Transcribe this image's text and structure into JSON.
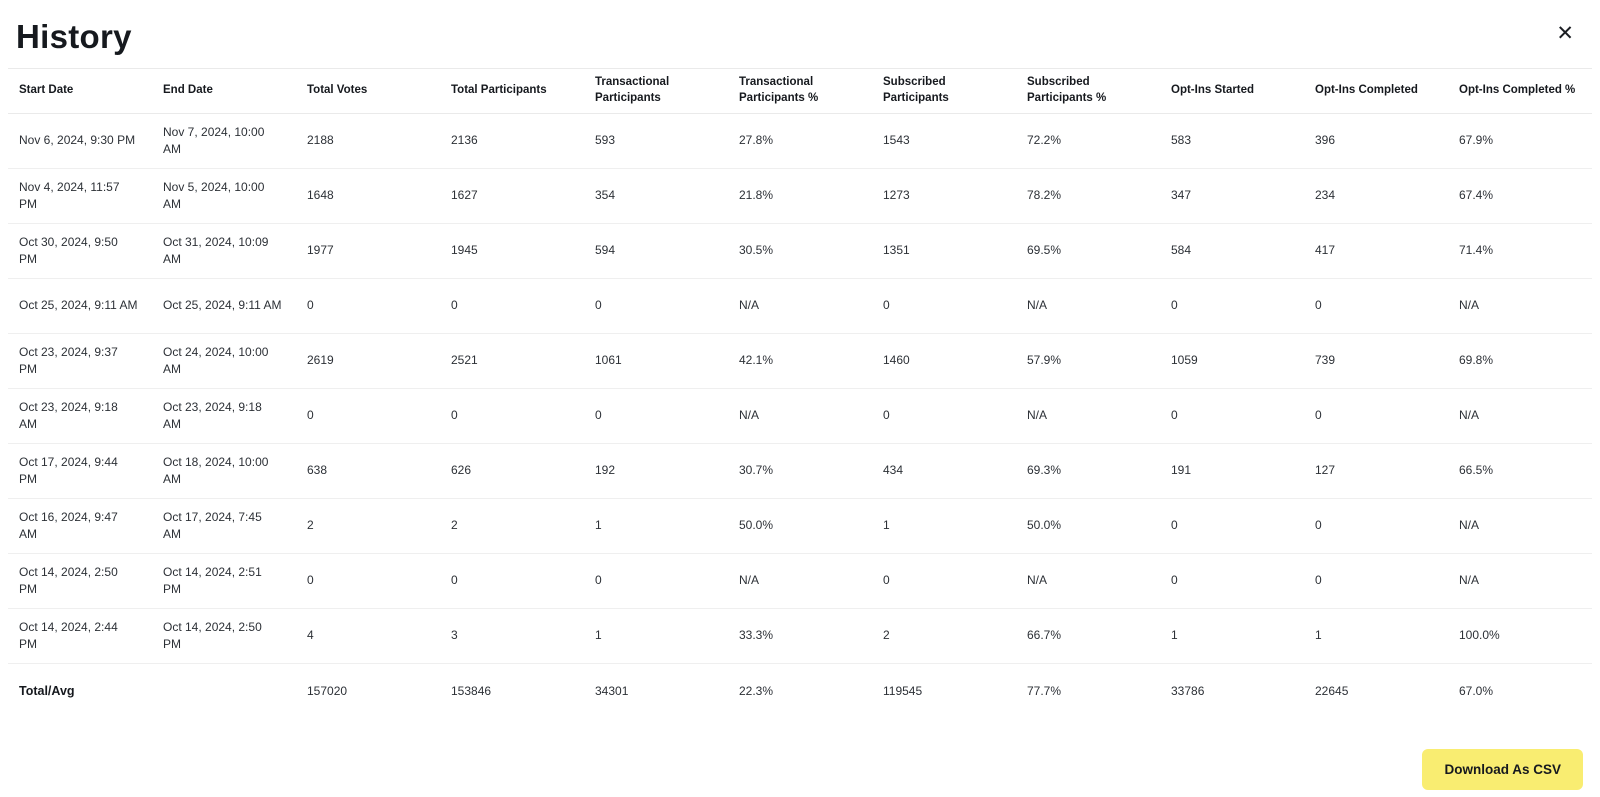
{
  "modal": {
    "title": "History",
    "close_icon": "✕"
  },
  "table": {
    "columns": [
      "Start Date",
      "End Date",
      "Total Votes",
      "Total Participants",
      "Transactional Participants",
      "Transactional Participants %",
      "Subscribed Participants",
      "Subscribed Participants %",
      "Opt-Ins Started",
      "Opt-Ins Completed",
      "Opt-Ins Completed %"
    ],
    "rows": [
      [
        "Nov 6, 2024, 9:30 PM",
        "Nov 7, 2024, 10:00 AM",
        "2188",
        "2136",
        "593",
        "27.8%",
        "1543",
        "72.2%",
        "583",
        "396",
        "67.9%"
      ],
      [
        "Nov 4, 2024, 11:57 PM",
        "Nov 5, 2024, 10:00 AM",
        "1648",
        "1627",
        "354",
        "21.8%",
        "1273",
        "78.2%",
        "347",
        "234",
        "67.4%"
      ],
      [
        "Oct 30, 2024, 9:50 PM",
        "Oct 31, 2024, 10:09 AM",
        "1977",
        "1945",
        "594",
        "30.5%",
        "1351",
        "69.5%",
        "584",
        "417",
        "71.4%"
      ],
      [
        "Oct 25, 2024, 9:11 AM",
        "Oct 25, 2024, 9:11 AM",
        "0",
        "0",
        "0",
        "N/A",
        "0",
        "N/A",
        "0",
        "0",
        "N/A"
      ],
      [
        "Oct 23, 2024, 9:37 PM",
        "Oct 24, 2024, 10:00 AM",
        "2619",
        "2521",
        "1061",
        "42.1%",
        "1460",
        "57.9%",
        "1059",
        "739",
        "69.8%"
      ],
      [
        "Oct 23, 2024, 9:18 AM",
        "Oct 23, 2024, 9:18 AM",
        "0",
        "0",
        "0",
        "N/A",
        "0",
        "N/A",
        "0",
        "0",
        "N/A"
      ],
      [
        "Oct 17, 2024, 9:44 PM",
        "Oct 18, 2024, 10:00 AM",
        "638",
        "626",
        "192",
        "30.7%",
        "434",
        "69.3%",
        "191",
        "127",
        "66.5%"
      ],
      [
        "Oct 16, 2024, 9:47 AM",
        "Oct 17, 2024, 7:45 AM",
        "2",
        "2",
        "1",
        "50.0%",
        "1",
        "50.0%",
        "0",
        "0",
        "N/A"
      ],
      [
        "Oct 14, 2024, 2:50 PM",
        "Oct 14, 2024, 2:51 PM",
        "0",
        "0",
        "0",
        "N/A",
        "0",
        "N/A",
        "0",
        "0",
        "N/A"
      ],
      [
        "Oct 14, 2024, 2:44 PM",
        "Oct 14, 2024, 2:50 PM",
        "4",
        "3",
        "1",
        "33.3%",
        "2",
        "66.7%",
        "1",
        "1",
        "100.0%"
      ]
    ],
    "total_row": [
      "Total/Avg",
      "",
      "157020",
      "153846",
      "34301",
      "22.3%",
      "119545",
      "77.7%",
      "33786",
      "22645",
      "67.0%"
    ]
  },
  "footer": {
    "download_button_label": "Download As CSV"
  },
  "colors": {
    "accent_yellow": "#F9ED71",
    "text_dark": "#16191E",
    "divider": "#EFEFEF"
  }
}
